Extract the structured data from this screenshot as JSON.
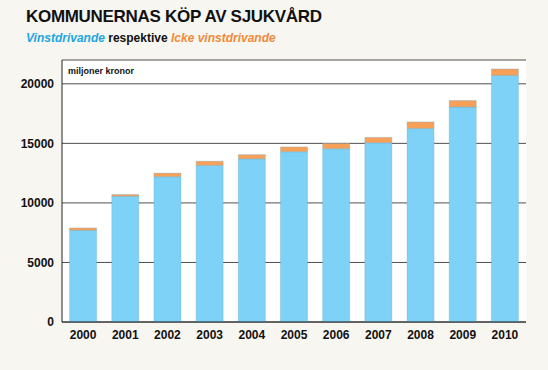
{
  "chart_data": {
    "type": "bar",
    "title": "KOMMUNERNAS KÖP AV SJUKVÅRD",
    "subtitle": "Vinstdrivande respektive Icke vinstdrivande",
    "y_label": "miljoner kronor",
    "categories": [
      "2000",
      "2001",
      "2002",
      "2003",
      "2004",
      "2005",
      "2006",
      "2007",
      "2008",
      "2009",
      "2010"
    ],
    "series": [
      {
        "name": "Vinstdrivande",
        "color": "#7fd2f7",
        "values": [
          7700,
          10550,
          12200,
          13150,
          13700,
          14300,
          14550,
          15050,
          16250,
          18050,
          20700
        ]
      },
      {
        "name": "Icke vinstdrivande",
        "color": "#f7a05a",
        "values": [
          200,
          150,
          300,
          350,
          350,
          400,
          450,
          450,
          550,
          550,
          550
        ]
      }
    ],
    "stacked": true,
    "ylim": [
      0,
      22000
    ],
    "yticks": [
      0,
      5000,
      10000,
      15000,
      20000
    ],
    "grid": true
  }
}
